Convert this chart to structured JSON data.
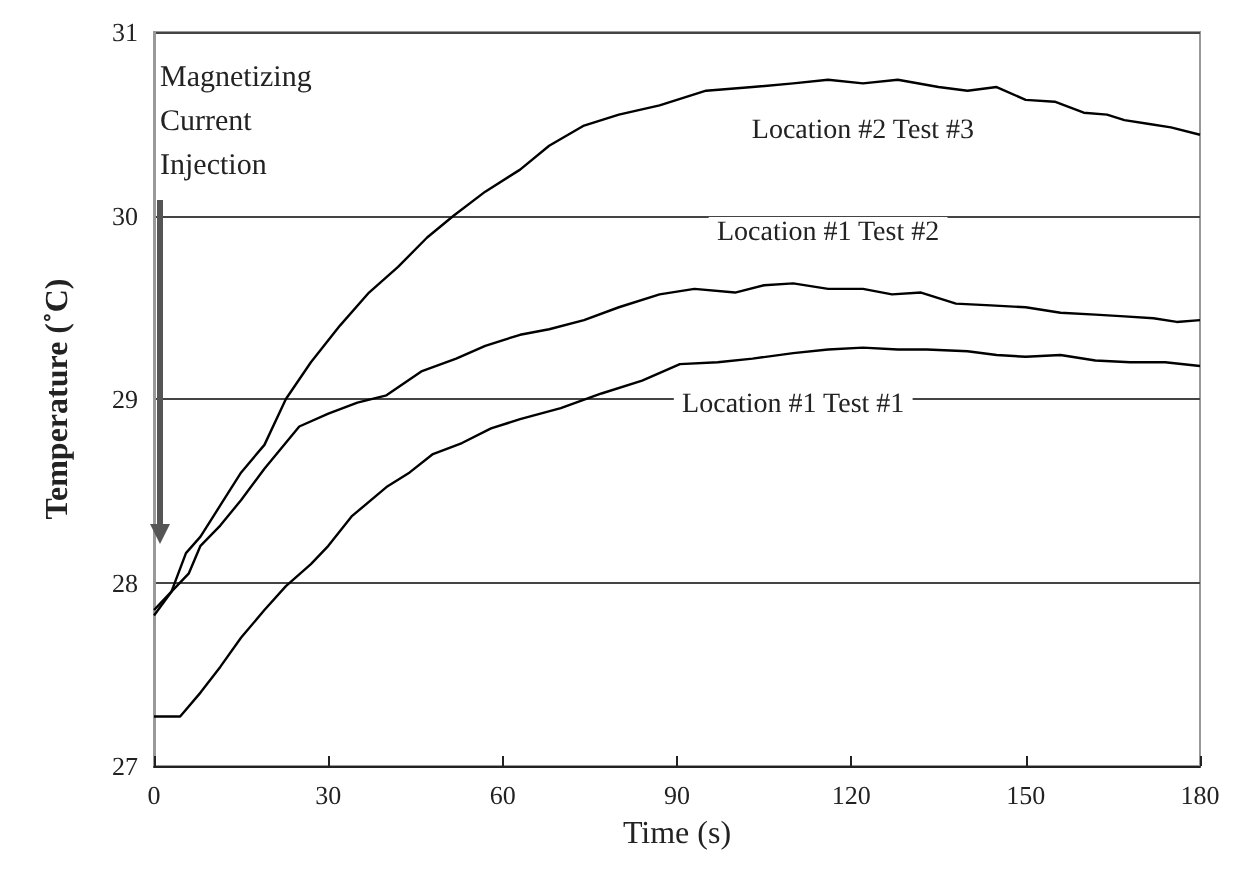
{
  "chart_data": {
    "type": "line",
    "xlabel": "Time (s)",
    "ylabel": "Temperature (˚C)",
    "xlim": [
      0,
      180
    ],
    "xticks": [
      0,
      30,
      60,
      90,
      120,
      150,
      180
    ],
    "ylim": [
      27,
      31
    ],
    "yticks": [
      27,
      28,
      29,
      30,
      31
    ],
    "grid": "y",
    "legend": false,
    "marker": "none",
    "line_style": "solid",
    "annotations": [
      "Magnetizing Current Injection"
    ],
    "series": [
      {
        "name": "Location #2 Test #3",
        "color": "#000000",
        "x": [
          0,
          3,
          5.5,
          8,
          11.4,
          15,
          19,
          22.7,
          27,
          32,
          37,
          42,
          47,
          51.6,
          57,
          63,
          68,
          74,
          80,
          87,
          95,
          103,
          110,
          116,
          122,
          128,
          135,
          140,
          145,
          150,
          155,
          160,
          164,
          167,
          171,
          175,
          180
        ],
        "values": [
          27.82,
          27.95,
          28.16,
          28.25,
          28.42,
          28.6,
          28.75,
          29.0,
          29.2,
          29.4,
          29.58,
          29.72,
          29.88,
          30.0,
          30.13,
          30.25,
          30.38,
          30.49,
          30.55,
          30.6,
          30.68,
          30.7,
          30.72,
          30.74,
          30.72,
          30.74,
          30.7,
          30.68,
          30.7,
          30.63,
          30.62,
          30.56,
          30.55,
          30.52,
          30.5,
          30.48,
          30.44
        ]
      },
      {
        "name": "Location #1 Test #2",
        "color": "#000000",
        "x": [
          0,
          3,
          6,
          8,
          11.4,
          15,
          19,
          25,
          30,
          35,
          40,
          46,
          52,
          57,
          63,
          68,
          74,
          80,
          87,
          93,
          100,
          105,
          110,
          116,
          122,
          127,
          132,
          138,
          144,
          150,
          156,
          162,
          167,
          172,
          176,
          180
        ],
        "values": [
          27.85,
          27.95,
          28.05,
          28.2,
          28.31,
          28.45,
          28.62,
          28.85,
          28.92,
          28.98,
          29.02,
          29.15,
          29.22,
          29.29,
          29.35,
          29.38,
          29.43,
          29.5,
          29.57,
          29.6,
          29.58,
          29.62,
          29.63,
          29.6,
          29.6,
          29.57,
          29.58,
          29.52,
          29.51,
          29.5,
          29.47,
          29.46,
          29.45,
          29.44,
          29.42,
          29.43
        ]
      },
      {
        "name": "Location #1 Test #1",
        "color": "#000000",
        "x": [
          0,
          2,
          4.5,
          8,
          11.4,
          15,
          19,
          22.7,
          27,
          30,
          34,
          40,
          44,
          48,
          53,
          58,
          63,
          70,
          77,
          84,
          90.5,
          97,
          103,
          110,
          116,
          122,
          128,
          133,
          140,
          145,
          150,
          156,
          162,
          168,
          174,
          180
        ],
        "values": [
          27.27,
          27.27,
          27.27,
          27.4,
          27.54,
          27.7,
          27.85,
          27.98,
          28.1,
          28.2,
          28.36,
          28.52,
          28.6,
          28.7,
          28.76,
          28.84,
          28.89,
          28.95,
          29.03,
          29.1,
          29.19,
          29.2,
          29.22,
          29.25,
          29.27,
          29.28,
          29.27,
          29.27,
          29.26,
          29.24,
          29.23,
          29.24,
          29.21,
          29.2,
          29.2,
          29.18
        ]
      }
    ]
  }
}
